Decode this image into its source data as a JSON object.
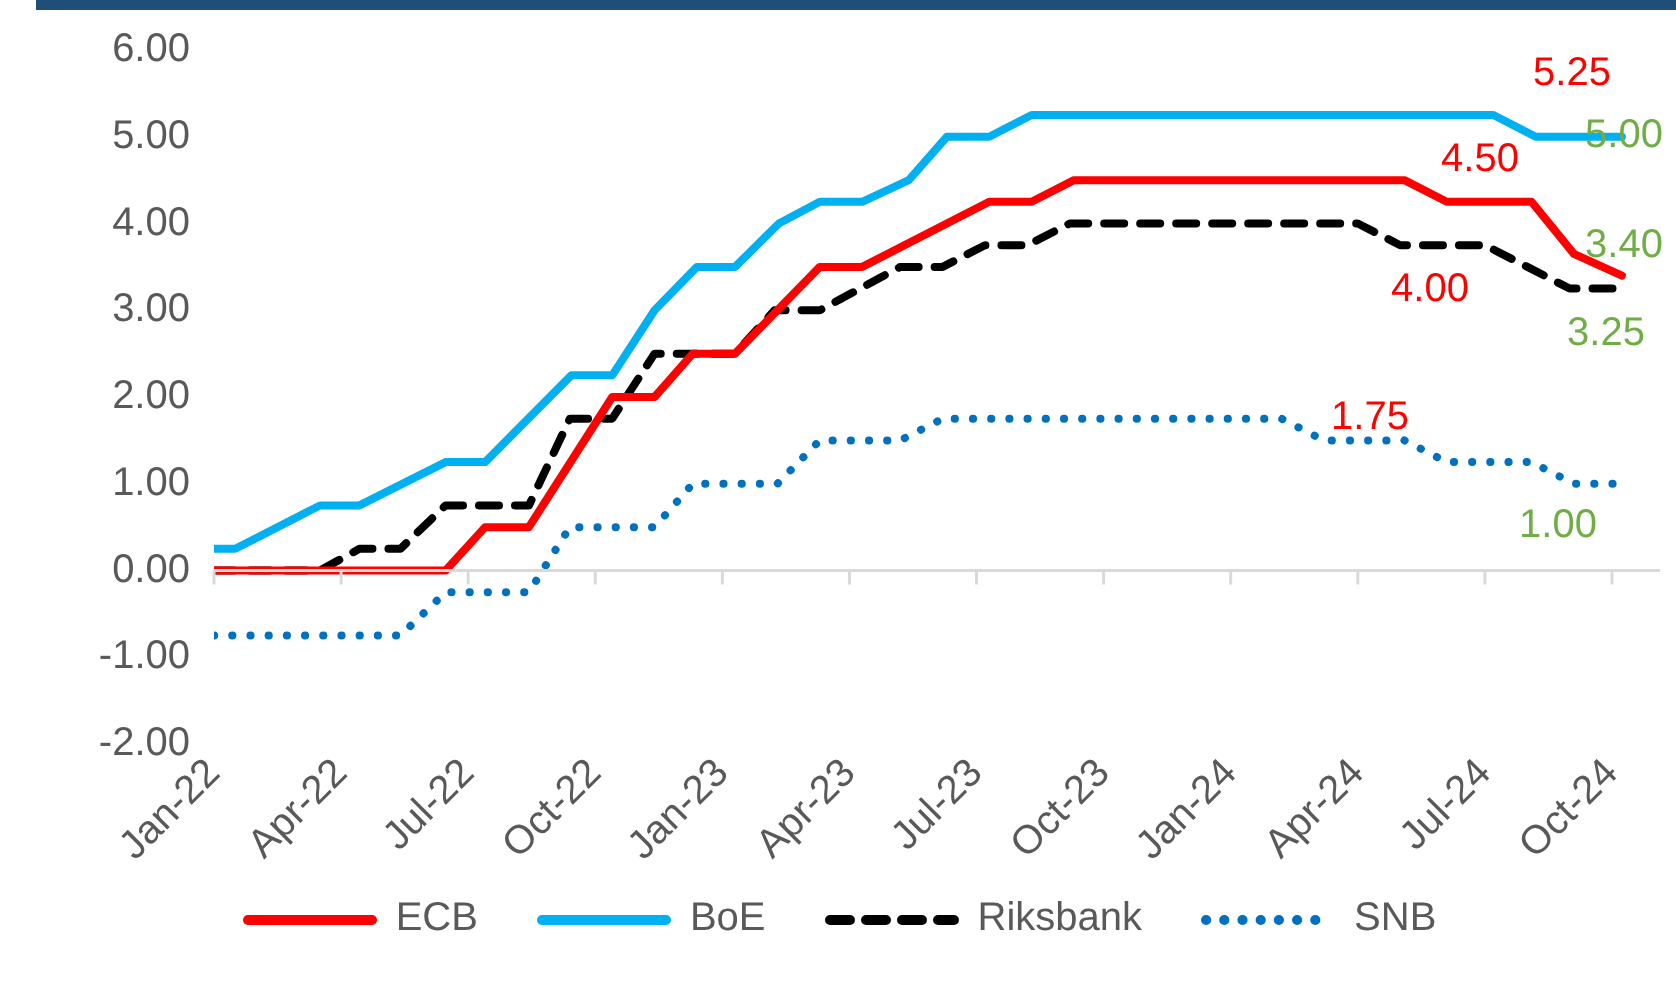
{
  "chart_data": {
    "type": "line",
    "ref_lines": [
      {
        "axis": "y",
        "value": 0,
        "color": "#d9d9d9"
      }
    ],
    "series": [
      {
        "name": "ECB",
        "color": "#ff0000",
        "line_style": "solid",
        "x": [
          "2022-01-01",
          "2022-06-15",
          "2022-07-13",
          "2022-08-14",
          "2022-10-13",
          "2022-11-13",
          "2022-12-10",
          "2023-01-10",
          "2023-03-10",
          "2023-04-10",
          "2023-07-10",
          "2023-08-10",
          "2023-09-10",
          "2024-05-04",
          "2024-06-04",
          "2024-08-04",
          "2024-09-04",
          "2024-10-08"
        ],
        "values": [
          0,
          0,
          0.5,
          0.5,
          2.0,
          2.0,
          2.5,
          2.5,
          3.5,
          3.5,
          4.25,
          4.25,
          4.5,
          4.5,
          4.25,
          4.25,
          3.65,
          3.4
        ]
      },
      {
        "name": "BoE",
        "color": "#00b0f0",
        "line_style": "solid",
        "x": [
          "2022-01-01",
          "2022-01-16",
          "2022-03-16",
          "2022-04-14",
          "2022-06-15",
          "2022-07-13",
          "2022-09-14",
          "2022-10-13",
          "2022-11-13",
          "2022-12-13",
          "2023-01-10",
          "2023-02-11",
          "2023-03-10",
          "2023-04-10",
          "2023-05-13",
          "2023-06-10",
          "2023-07-10",
          "2023-08-10",
          "2024-07-07",
          "2024-08-07",
          "2024-10-08"
        ],
        "values": [
          0.25,
          0.25,
          0.75,
          0.75,
          1.25,
          1.25,
          2.25,
          2.25,
          3.0,
          3.5,
          3.5,
          4.0,
          4.25,
          4.25,
          4.5,
          5.0,
          5.0,
          5.25,
          5.25,
          5.0,
          5.0
        ]
      },
      {
        "name": "Riksbank",
        "color": "#000000",
        "line_style": "dashed",
        "x": [
          "2022-01-01",
          "2022-03-16",
          "2022-04-14",
          "2022-05-13",
          "2022-06-15",
          "2022-08-14",
          "2022-09-13",
          "2022-10-13",
          "2022-11-13",
          "2023-01-10",
          "2023-02-08",
          "2023-03-10",
          "2023-05-07",
          "2023-06-07",
          "2023-07-07",
          "2023-08-07",
          "2023-09-07",
          "2024-04-01",
          "2024-05-01",
          "2024-07-01",
          "2024-09-01",
          "2024-10-08"
        ],
        "values": [
          0,
          0,
          0.25,
          0.25,
          0.75,
          0.75,
          1.75,
          1.75,
          2.5,
          2.5,
          3.0,
          3.0,
          3.5,
          3.5,
          3.75,
          3.75,
          4.0,
          4.0,
          3.75,
          3.75,
          3.25,
          3.25
        ]
      },
      {
        "name": "SNB",
        "color": "#0070c0",
        "line_style": "dotted",
        "x": [
          "2022-01-01",
          "2022-05-13",
          "2022-06-15",
          "2022-08-14",
          "2022-09-13",
          "2022-11-13",
          "2022-12-10",
          "2023-02-10",
          "2023-03-10",
          "2023-05-07",
          "2023-06-07",
          "2024-02-07",
          "2024-03-07",
          "2024-05-04",
          "2024-06-04",
          "2024-08-04",
          "2024-09-04",
          "2024-10-08"
        ],
        "values": [
          -0.75,
          -0.75,
          -0.25,
          -0.25,
          0.5,
          0.5,
          1.0,
          1.0,
          1.5,
          1.5,
          1.75,
          1.75,
          1.5,
          1.5,
          1.25,
          1.25,
          1.0,
          1.0
        ]
      }
    ],
    "xlim": [
      "2022-01-01",
      "2024-11-05"
    ],
    "xticks": [
      {
        "value": "2022-01-01",
        "label": "Jan-22"
      },
      {
        "value": "2022-04-01",
        "label": "Apr-22"
      },
      {
        "value": "2022-07-01",
        "label": "Jul-22"
      },
      {
        "value": "2022-10-01",
        "label": "Oct-22"
      },
      {
        "value": "2023-01-01",
        "label": "Jan-23"
      },
      {
        "value": "2023-04-01",
        "label": "Apr-23"
      },
      {
        "value": "2023-07-01",
        "label": "Jul-23"
      },
      {
        "value": "2023-10-01",
        "label": "Oct-23"
      },
      {
        "value": "2024-01-01",
        "label": "Jan-24"
      },
      {
        "value": "2024-04-01",
        "label": "Apr-24"
      },
      {
        "value": "2024-07-01",
        "label": "Jul-24"
      },
      {
        "value": "2024-10-01",
        "label": "Oct-24"
      }
    ],
    "ylim": [
      -2,
      6
    ],
    "yticks": [
      {
        "value": -2,
        "label": "-2.00"
      },
      {
        "value": -1,
        "label": "-1.00"
      },
      {
        "value": 0,
        "label": "0.00"
      },
      {
        "value": 1,
        "label": "1.00"
      },
      {
        "value": 2,
        "label": "2.00"
      },
      {
        "value": 3,
        "label": "3.00"
      },
      {
        "value": 4,
        "label": "4.00"
      },
      {
        "value": 5,
        "label": "5.00"
      },
      {
        "value": 6,
        "label": "6.00"
      }
    ],
    "annotations": [
      "5.25",
      "4.50",
      "4.00",
      "1.75",
      "5.00",
      "3.40",
      "3.25",
      "1.00"
    ],
    "legend": "bottom",
    "marker": "none"
  }
}
